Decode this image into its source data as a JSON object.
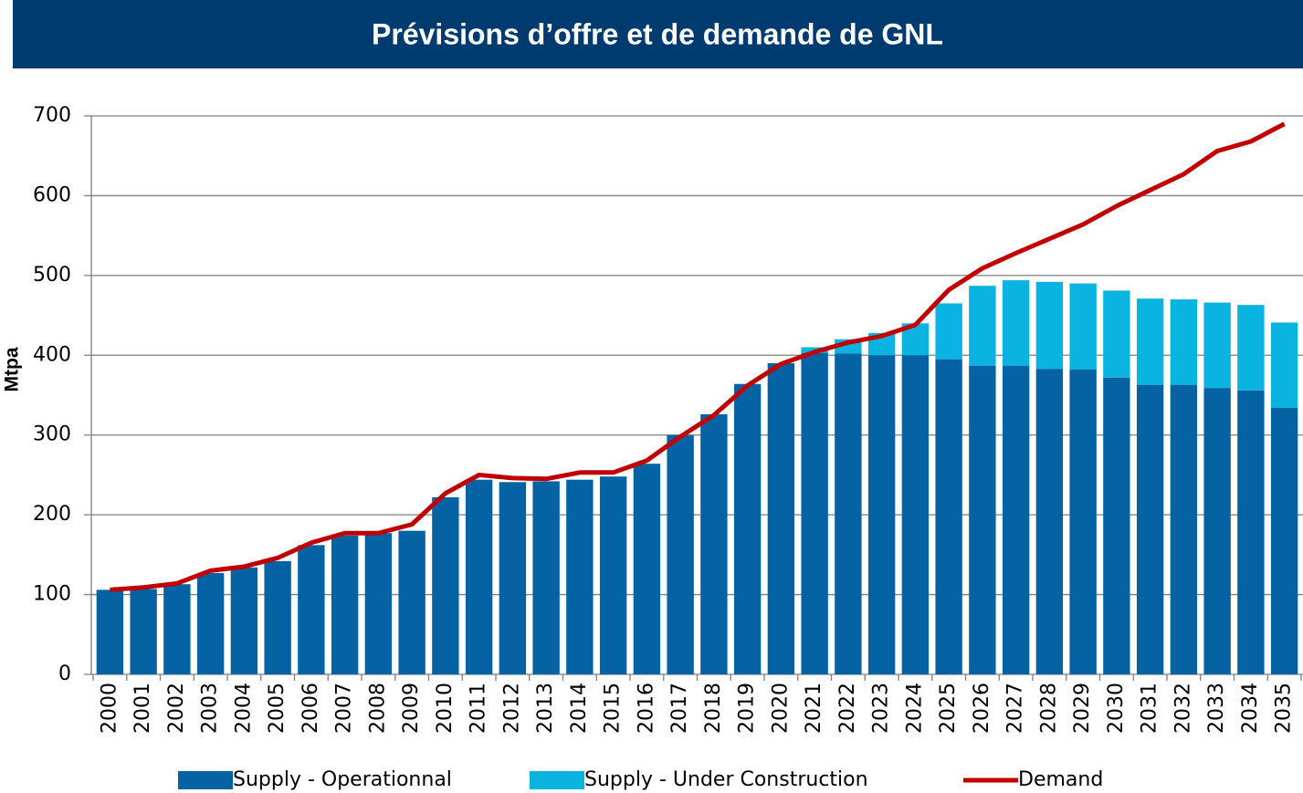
{
  "chart_data": {
    "type": "bar",
    "stacked": true,
    "title": "Prévisions d’offre et de demande de GNL",
    "y_label": "Mtpa",
    "categories": [
      "2000",
      "2001",
      "2002",
      "2003",
      "2004",
      "2005",
      "2006",
      "2007",
      "2008",
      "2009",
      "2010",
      "2011",
      "2012",
      "2013",
      "2014",
      "2015",
      "2016",
      "2017",
      "2018",
      "2019",
      "2020",
      "2021",
      "2022",
      "2023",
      "2024",
      "2025",
      "2026",
      "2027",
      "2028",
      "2029",
      "2030",
      "2031",
      "2032",
      "2033",
      "2034",
      "2035"
    ],
    "series": [
      {
        "name": "Supply - Operationnal",
        "type": "bar",
        "color": "#0563a4",
        "values": [
          106,
          107,
          113,
          127,
          134,
          142,
          162,
          174,
          177,
          180,
          222,
          244,
          241,
          242,
          244,
          248,
          264,
          300,
          326,
          364,
          390,
          403,
          402,
          400,
          400,
          395,
          387,
          387,
          383,
          382,
          372,
          363,
          363,
          359,
          356,
          334
        ]
      },
      {
        "name": "Supply - Under Construction",
        "type": "bar",
        "color": "#0bb3e0",
        "values": [
          0,
          0,
          0,
          0,
          0,
          0,
          0,
          0,
          0,
          0,
          0,
          0,
          0,
          0,
          0,
          0,
          0,
          0,
          0,
          0,
          0,
          7,
          18,
          28,
          40,
          70,
          100,
          107,
          109,
          108,
          109,
          108,
          107,
          107,
          107,
          107
        ]
      },
      {
        "name": "Demand",
        "type": "line",
        "color": "#c00000",
        "values": [
          106,
          109,
          114,
          130,
          135,
          146,
          165,
          177,
          177,
          188,
          227,
          250,
          246,
          245,
          253,
          253,
          268,
          298,
          325,
          362,
          389,
          404,
          416,
          424,
          438,
          482,
          509,
          528,
          546,
          564,
          587,
          607,
          627,
          656,
          668,
          690
        ]
      }
    ],
    "ylim": [
      0,
      700
    ],
    "yticks": [
      0,
      100,
      200,
      300,
      400,
      500,
      600,
      700
    ],
    "grid": true
  }
}
